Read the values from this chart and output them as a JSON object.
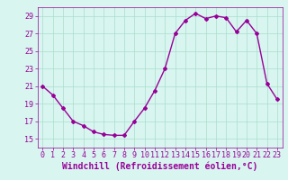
{
  "x": [
    0,
    1,
    2,
    3,
    4,
    5,
    6,
    7,
    8,
    9,
    10,
    11,
    12,
    13,
    14,
    15,
    16,
    17,
    18,
    19,
    20,
    21,
    22,
    23
  ],
  "y": [
    21.0,
    20.0,
    18.5,
    17.0,
    16.5,
    15.8,
    15.5,
    15.4,
    15.4,
    17.0,
    18.5,
    20.5,
    23.0,
    27.0,
    28.5,
    29.3,
    28.7,
    29.0,
    28.8,
    27.2,
    28.5,
    27.0,
    21.3,
    19.5
  ],
  "line_color": "#990099",
  "marker": "D",
  "marker_size": 2,
  "bg_color": "#d8f5f0",
  "grid_color": "#aaddcc",
  "xlabel": "Windchill (Refroidissement éolien,°C)",
  "xlim": [
    -0.5,
    23.5
  ],
  "ylim": [
    14.0,
    30.0
  ],
  "yticks": [
    15,
    17,
    19,
    21,
    23,
    25,
    27,
    29
  ],
  "xticks": [
    0,
    1,
    2,
    3,
    4,
    5,
    6,
    7,
    8,
    9,
    10,
    11,
    12,
    13,
    14,
    15,
    16,
    17,
    18,
    19,
    20,
    21,
    22,
    23
  ],
  "xlabel_fontsize": 7,
  "tick_fontsize": 6,
  "line_width": 1.0
}
